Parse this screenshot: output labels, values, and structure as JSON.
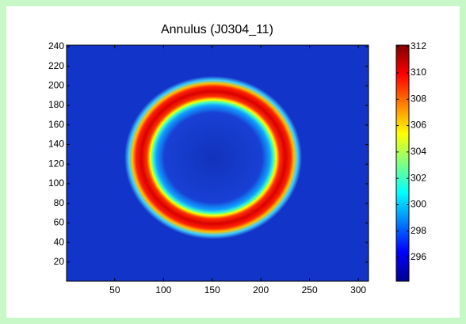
{
  "chart_data": {
    "type": "heatmap",
    "title": "Annulus (J0304_11)",
    "xlim": [
      0.5,
      310.5
    ],
    "ylim": [
      0.5,
      241.5
    ],
    "xticks": [
      50,
      100,
      150,
      200,
      250,
      300
    ],
    "yticks": [
      20,
      40,
      60,
      80,
      100,
      120,
      140,
      160,
      180,
      200,
      220,
      240
    ],
    "colormap": "jet",
    "colorbar": {
      "clim": [
        294.2,
        312.1
      ],
      "ticks": [
        296,
        298,
        300,
        302,
        304,
        306,
        308,
        310,
        312
      ]
    }
  }
}
